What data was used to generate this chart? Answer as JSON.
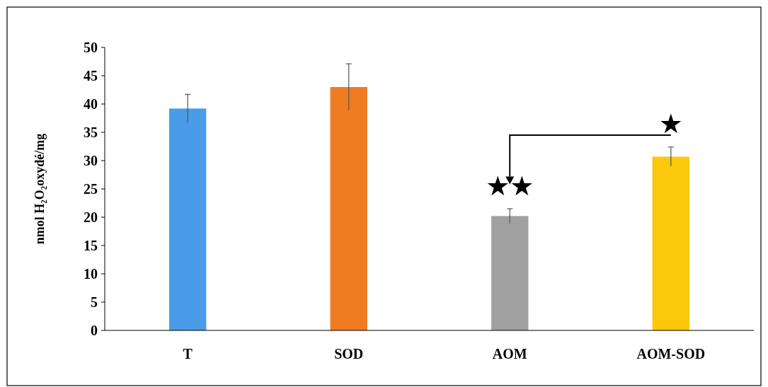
{
  "chart_data": {
    "type": "bar",
    "ylabel": "nmol H₂O₂oxydé/mg",
    "categories": [
      "T",
      "SOD",
      "AOM",
      "AOM-SOD"
    ],
    "values": [
      39.2,
      43,
      20.2,
      30.7
    ],
    "errors": [
      2.5,
      4.1,
      1.3,
      1.7
    ],
    "colors": [
      "#4a9be8",
      "#f07c22",
      "#a0a0a0",
      "#fcc80c"
    ],
    "ylim": [
      0,
      50
    ],
    "yticks": [
      0,
      5,
      10,
      15,
      20,
      25,
      30,
      35,
      40,
      45,
      50
    ],
    "grid": false,
    "annotations": [
      "★★",
      "★"
    ]
  }
}
